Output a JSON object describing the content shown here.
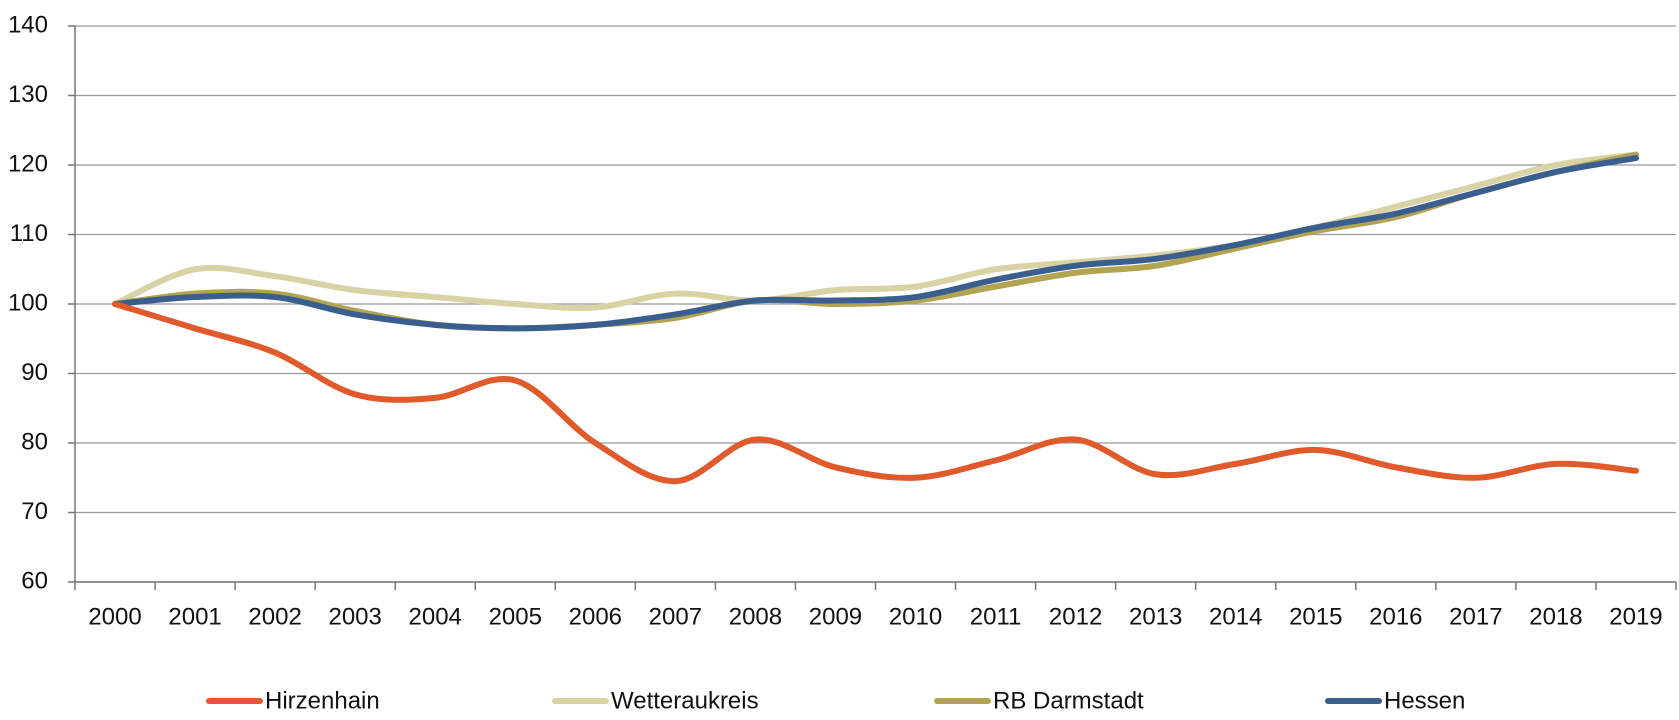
{
  "chart_data": {
    "type": "line",
    "categories": [
      "2000",
      "2001",
      "2002",
      "2003",
      "2004",
      "2005",
      "2006",
      "2007",
      "2008",
      "2009",
      "2010",
      "2011",
      "2012",
      "2013",
      "2014",
      "2015",
      "2016",
      "2017",
      "2018",
      "2019"
    ],
    "series": [
      {
        "name": "Hirzenhain",
        "color": "#e05a2b",
        "values": [
          100,
          96.5,
          93,
          87,
          86.5,
          89,
          80,
          74.5,
          80.5,
          76.5,
          75,
          77.5,
          80.5,
          75.5,
          77,
          79,
          76.5,
          75,
          77,
          76
        ]
      },
      {
        "name": "Wetteraukreis",
        "color": "#d8d2a4",
        "values": [
          100,
          105,
          104,
          102,
          101,
          100,
          99.5,
          101.5,
          100.5,
          102,
          102.5,
          105,
          106,
          107,
          108.5,
          111,
          114,
          117,
          120,
          121.5
        ]
      },
      {
        "name": "RB Darmstadt",
        "color": "#b3a452",
        "values": [
          100,
          101.5,
          101.5,
          99,
          97,
          96.5,
          97,
          98,
          100.5,
          100,
          100.5,
          102.5,
          104.5,
          105.5,
          108,
          110.5,
          112.5,
          116,
          119,
          121.5
        ]
      },
      {
        "name": "Hessen",
        "color": "#3a5f8e",
        "values": [
          100,
          101,
          101,
          98.5,
          97,
          96.5,
          97,
          98.5,
          100.5,
          100.5,
          101,
          103.5,
          105.5,
          106.5,
          108.5,
          111,
          113,
          116,
          119,
          121
        ]
      }
    ],
    "ylim": [
      60,
      140
    ],
    "yticks": [
      60,
      70,
      80,
      90,
      100,
      110,
      120,
      130,
      140
    ],
    "grid": true
  }
}
